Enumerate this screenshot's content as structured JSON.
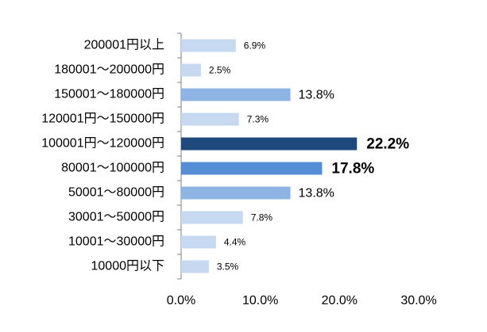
{
  "chart_data": {
    "type": "hbar",
    "categories": [
      "200001円以上",
      "180001～200000円",
      "150001～180000円",
      "120001円～150000円",
      "100001円～120000円",
      "80001～100000円",
      "50001～80000円",
      "30001～50000円",
      "10001～30000円",
      "10000円以下"
    ],
    "values": [
      6.9,
      2.5,
      13.8,
      7.3,
      22.2,
      17.8,
      13.8,
      7.8,
      4.4,
      3.5
    ],
    "value_labels": [
      "6.9%",
      "2.5%",
      "13.8%",
      "7.3%",
      "22.2%",
      "17.8%",
      "13.8%",
      "7.8%",
      "4.4%",
      "3.5%"
    ],
    "colors": [
      "#c6d9f1",
      "#c6d9f1",
      "#8eb4e3",
      "#c6d9f1",
      "#1f497d",
      "#558ed5",
      "#8eb4e3",
      "#c6d9f1",
      "#c6d9f1",
      "#c6d9f1"
    ],
    "label_colors": [
      "#000000",
      "#000000",
      "#000000",
      "#000000",
      "#ff0000",
      "#ff0000",
      "#000000",
      "#000000",
      "#000000",
      "#000000"
    ],
    "xlim": [
      0,
      30
    ],
    "xticks": [
      {
        "value": 0,
        "label": "0.0%"
      },
      {
        "value": 10,
        "label": "10.0%"
      },
      {
        "value": 20,
        "label": "20.0%"
      },
      {
        "value": 30,
        "label": "30.0%"
      }
    ]
  }
}
